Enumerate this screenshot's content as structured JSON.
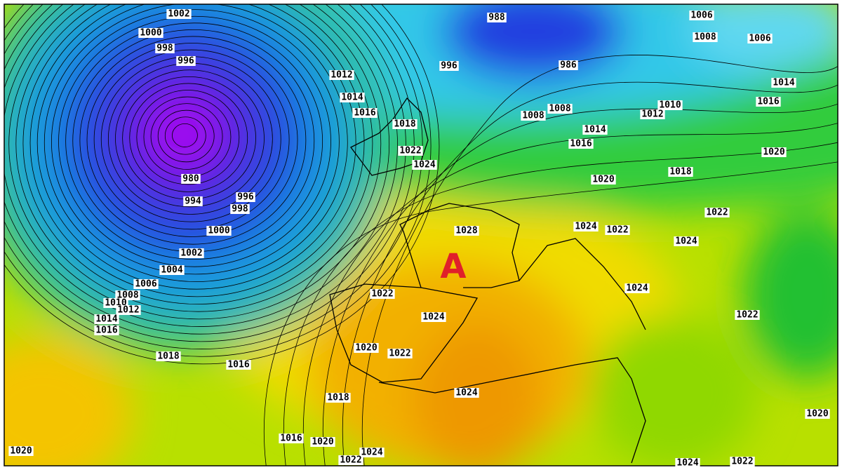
{
  "map": {
    "labels": [
      "1002",
      "1000",
      "998",
      "996",
      "1012",
      "1014",
      "1016",
      "1018",
      "1022",
      "1024",
      "980",
      "994",
      "996",
      "998",
      "1000",
      "1002",
      "1004",
      "1006",
      "1008",
      "1010",
      "1012",
      "1014",
      "1016",
      "1018",
      "1016",
      "1020",
      "988",
      "996",
      "986",
      "1006",
      "1008",
      "1006",
      "1014",
      "1016",
      "1010",
      "1012",
      "1008",
      "1008",
      "1014",
      "1016",
      "1020",
      "1018",
      "1020",
      "1022",
      "1028",
      "1024",
      "1022",
      "1024",
      "1024",
      "1022",
      "1024",
      "1020",
      "1022",
      "1024",
      "1018",
      "1016",
      "1020",
      "1024",
      "1022",
      "1022",
      "1020",
      "1024",
      "1022"
    ],
    "high_marker": "A"
  }
}
